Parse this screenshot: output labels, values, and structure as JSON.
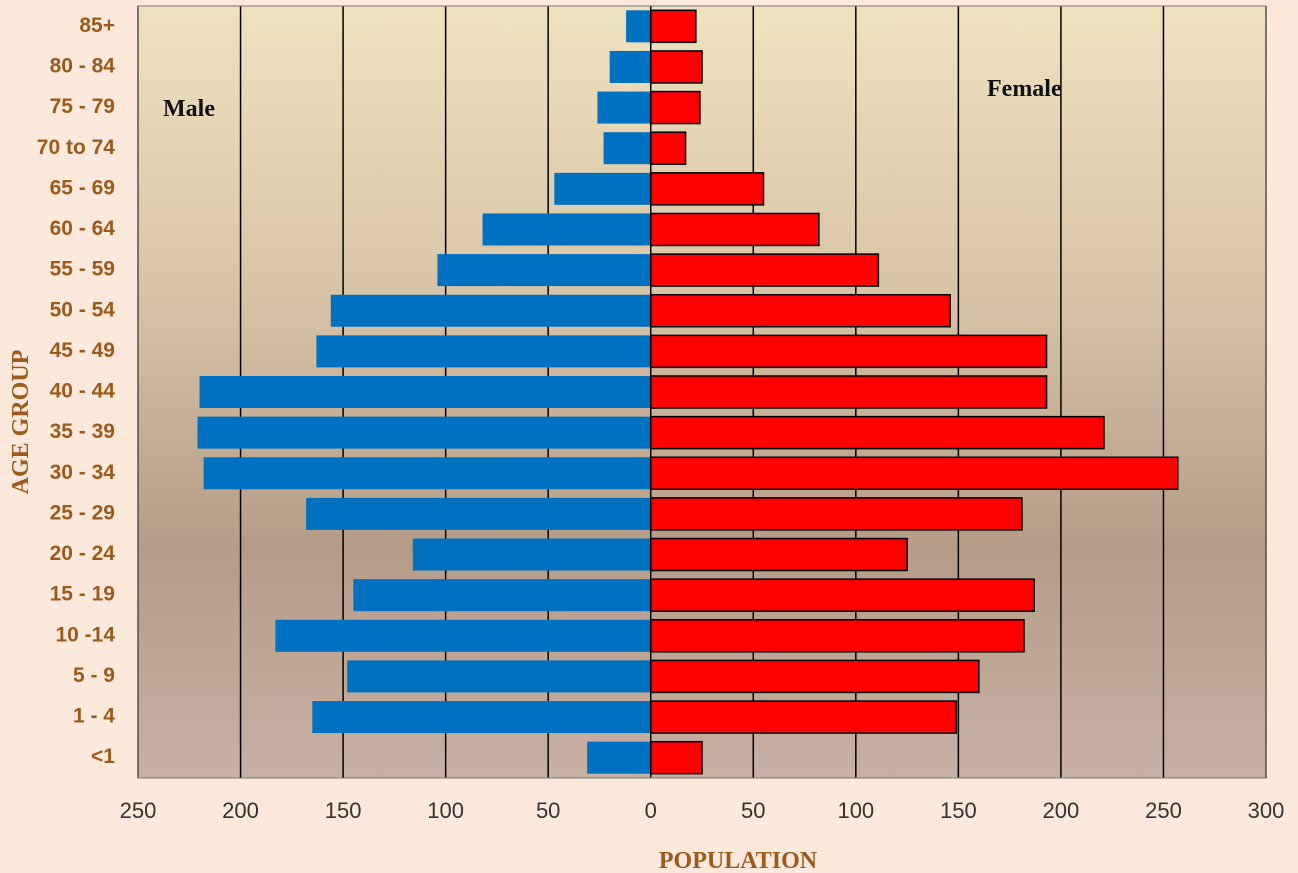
{
  "chart_data": {
    "type": "pyramid",
    "x_label": "POPULATION",
    "y_label": "AGE GROUP",
    "categories": [
      "85+",
      "80 - 84",
      "75 - 79",
      "70 to 74",
      "65 - 69",
      "60 - 64",
      "55 - 59",
      "50 - 54",
      "45 - 49",
      "40 - 44",
      "35 - 39",
      "30 - 34",
      "25 - 29",
      "20 - 24",
      "15 - 19",
      "10 -14",
      "5 - 9",
      "1 - 4",
      "<1"
    ],
    "series": [
      {
        "name": "Male",
        "color": "#0070c0",
        "values": [
          -12,
          -20,
          -26,
          -23,
          -47,
          -82,
          -104,
          -156,
          -163,
          -220,
          -221,
          -218,
          -168,
          -116,
          -145,
          -183,
          -148,
          -165,
          -31
        ]
      },
      {
        "name": "Female",
        "color": "#ff0000",
        "values": [
          22,
          25,
          24,
          17,
          55,
          82,
          111,
          146,
          193,
          193,
          221,
          257,
          181,
          125,
          187,
          182,
          160,
          149,
          25
        ]
      }
    ],
    "xlim": [
      -250,
      300
    ],
    "xticks": [
      {
        "value": -250,
        "label": "250"
      },
      {
        "value": -200,
        "label": "200"
      },
      {
        "value": -150,
        "label": "150"
      },
      {
        "value": -100,
        "label": "100"
      },
      {
        "value": -50,
        "label": "50"
      },
      0,
      50,
      100,
      150,
      200,
      250,
      300
    ],
    "grid": true
  }
}
